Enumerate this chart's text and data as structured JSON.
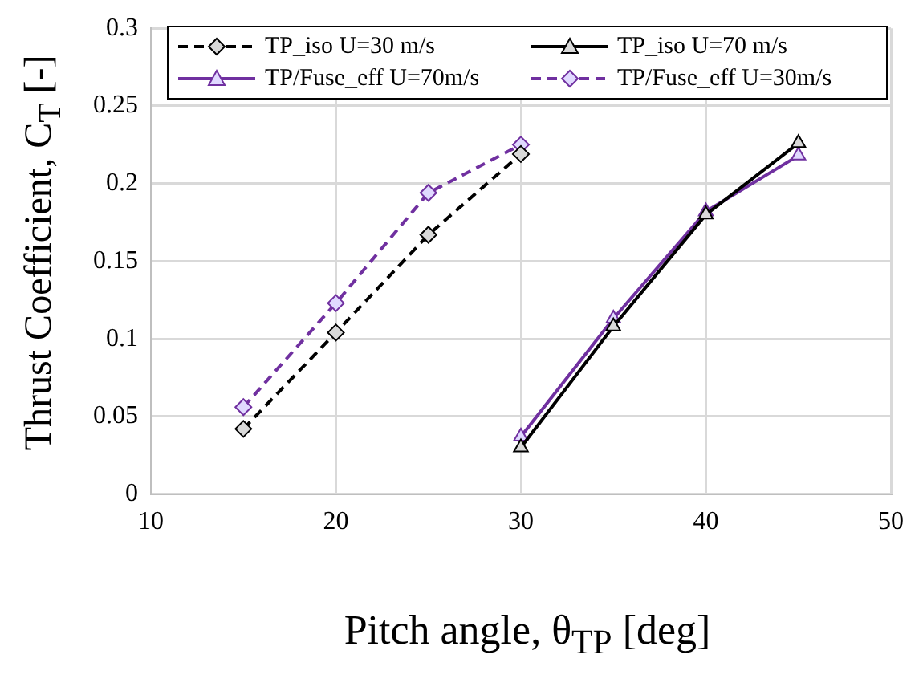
{
  "chart_data": {
    "type": "line",
    "xlabel": "Pitch angle,  θ$_{TP}$ [deg]",
    "ylabel": "Thrust Coefficient,  C$_{T}$ [-]",
    "xlim": [
      10,
      50
    ],
    "xticks": [
      10,
      20,
      30,
      40,
      50
    ],
    "ylim": [
      0,
      0.3
    ],
    "yticks": [
      0,
      0.05,
      0.1,
      0.15,
      0.2,
      0.25,
      0.3
    ],
    "grid": true,
    "legend": "top",
    "series": [
      {
        "name": "TP_iso U=30 m/s",
        "color": "#000000",
        "marker": "diamond",
        "line_style": "dashed",
        "x": [
          15,
          20,
          25,
          30
        ],
        "values": [
          0.042,
          0.104,
          0.167,
          0.219
        ]
      },
      {
        "name": "TP_iso U=70 m/s",
        "color": "#000000",
        "marker": "triangle",
        "line_style": "solid",
        "x": [
          30,
          35,
          40,
          45
        ],
        "values": [
          0.03,
          0.108,
          0.18,
          0.226
        ]
      },
      {
        "name": "TP/Fuse_eff U=70m/s",
        "color": "#7030a0",
        "marker": "triangle",
        "line_style": "solid",
        "x": [
          30,
          35,
          40,
          45
        ],
        "values": [
          0.037,
          0.113,
          0.182,
          0.218
        ]
      },
      {
        "name": "TP/Fuse_eff U=30m/s",
        "color": "#7030a0",
        "marker": "diamond",
        "line_style": "dashed",
        "x": [
          15,
          20,
          25,
          30
        ],
        "values": [
          0.056,
          0.123,
          0.194,
          0.225
        ]
      }
    ]
  }
}
